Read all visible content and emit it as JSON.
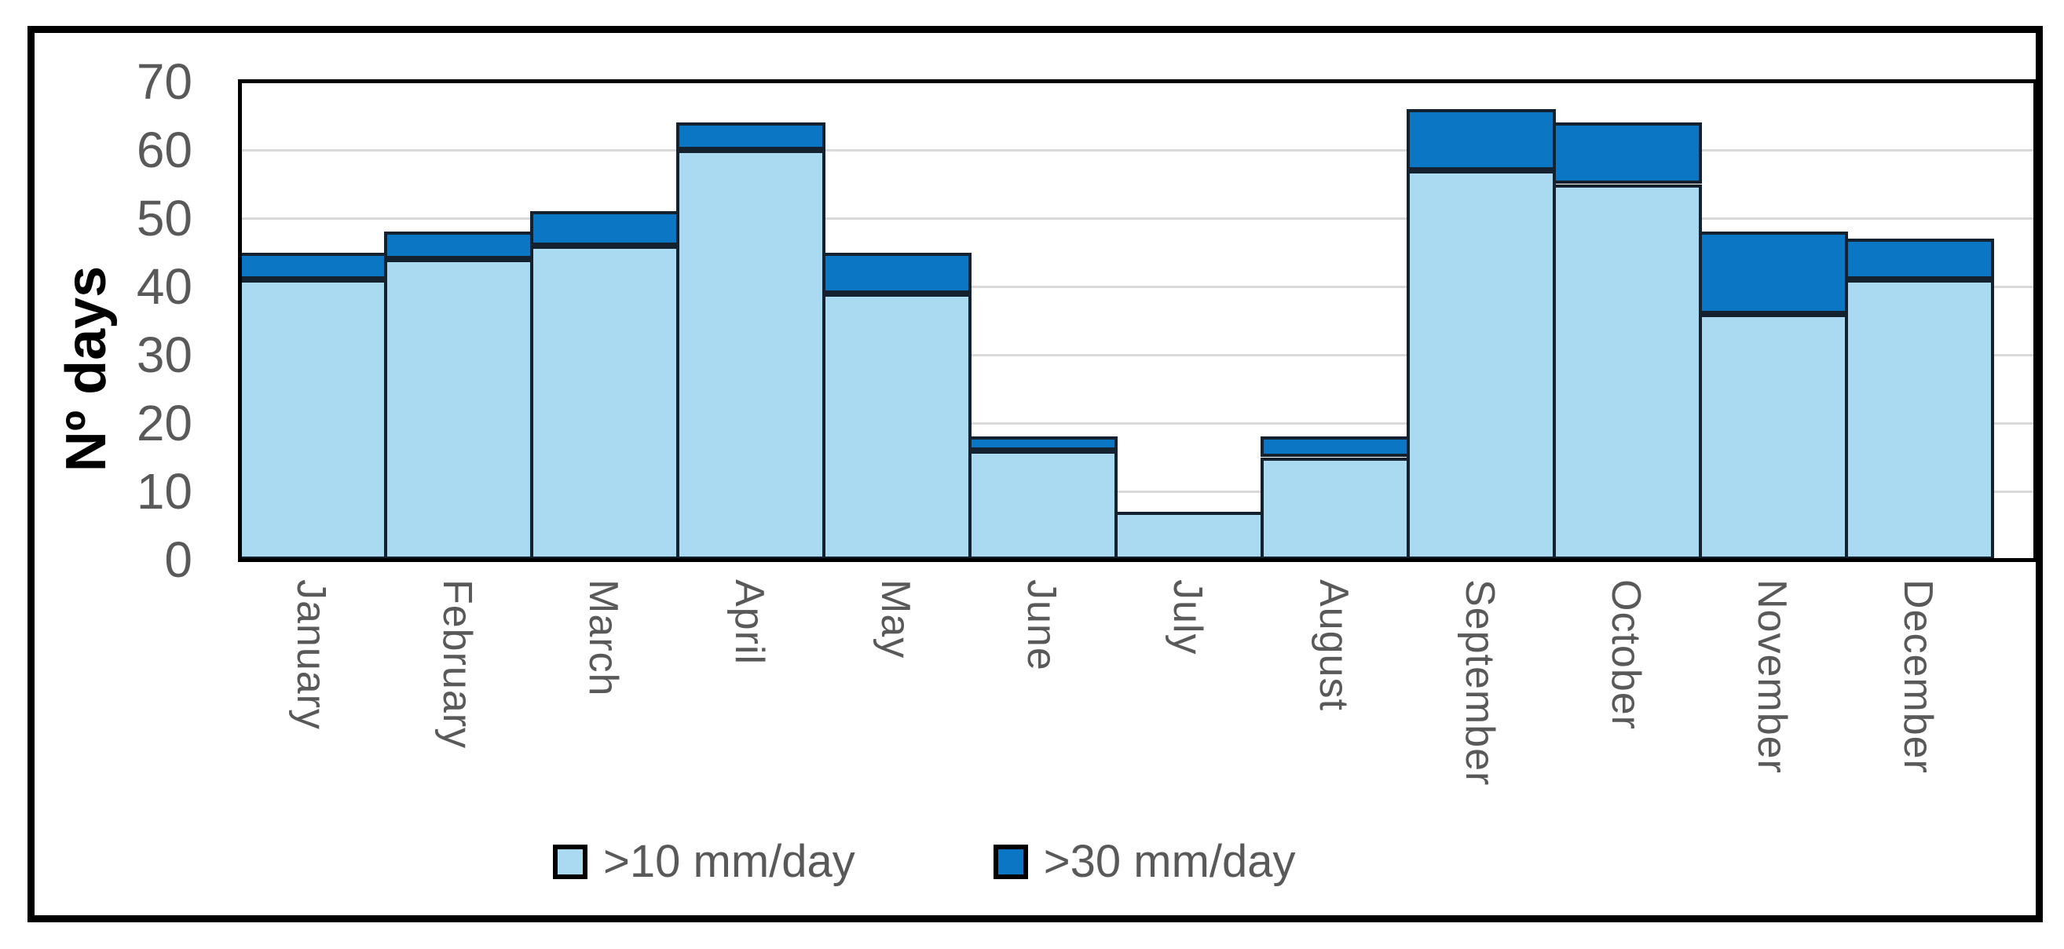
{
  "chart_data": {
    "type": "bar",
    "stacked": true,
    "categories": [
      "January",
      "February",
      "March",
      "April",
      "May",
      "June",
      "July",
      "August",
      "September",
      "October",
      "November",
      "December"
    ],
    "series": [
      {
        "name": ">10 mm/day",
        "color": "#A9DAF1",
        "values": [
          41,
          44,
          46,
          60,
          39,
          16,
          7,
          15,
          57,
          55,
          36,
          41
        ]
      },
      {
        "name": ">30 mm/day",
        "color": "#0B76C3",
        "values": [
          4,
          4,
          5,
          4,
          6,
          2,
          0,
          3,
          9,
          9,
          12,
          6
        ]
      }
    ],
    "totals": [
      45,
      48,
      51,
      64,
      45,
      18,
      7,
      18,
      66,
      64,
      48,
      47
    ],
    "title": "",
    "xlabel": "",
    "ylabel": "Nº days",
    "ylim": [
      0,
      70
    ],
    "yticks": [
      0,
      10,
      20,
      30,
      40,
      50,
      60,
      70
    ],
    "grid": "horizontal",
    "legend_position": "bottom",
    "colors": {
      "gridline": "#D9D9D9",
      "bar_outline": "#13222E",
      "tick_label": "#595959",
      "axis_title": "#000000",
      "frame": "#000000"
    }
  }
}
